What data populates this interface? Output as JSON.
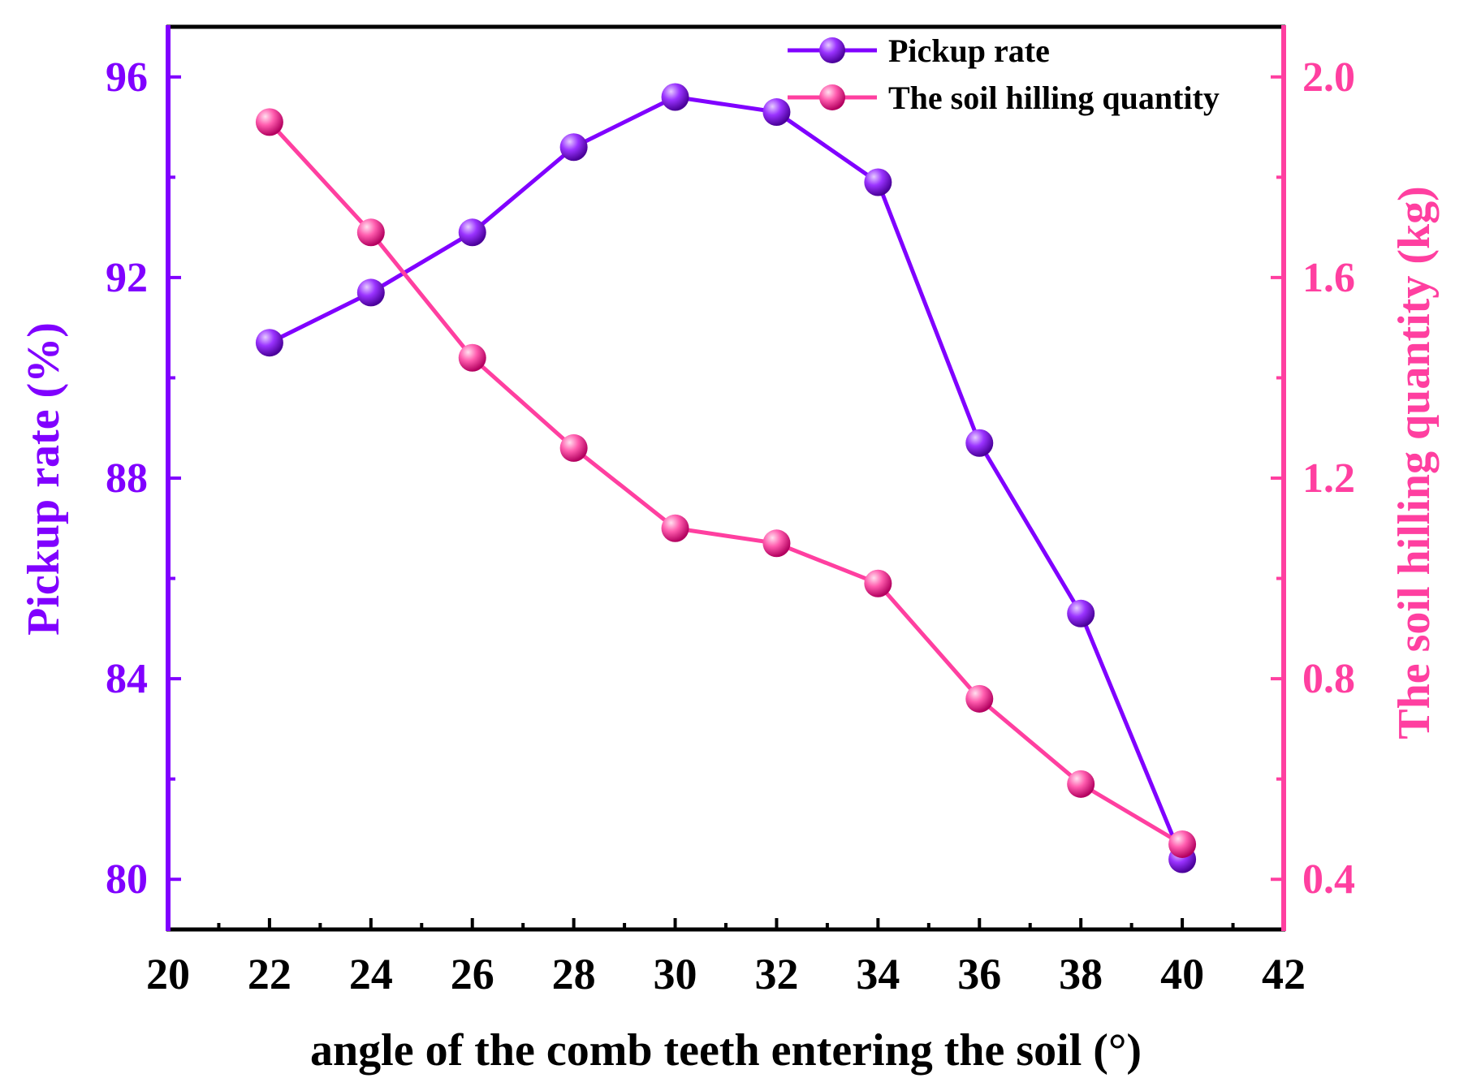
{
  "chart_data": {
    "type": "line",
    "x": [
      22,
      24,
      26,
      28,
      30,
      32,
      34,
      36,
      38,
      40
    ],
    "xlabel": "angle of the comb teeth entering the soil (°)",
    "xlim": [
      20,
      42
    ],
    "xticks": [
      "20",
      "22",
      "24",
      "26",
      "28",
      "30",
      "32",
      "34",
      "36",
      "38",
      "40",
      "42"
    ],
    "ylabel": "Pickup rate (%)",
    "ylim": [
      79,
      97
    ],
    "yticks": [
      "80",
      "84",
      "88",
      "92",
      "96"
    ],
    "y2label": "The soil hilling quantity (kg)",
    "y2lim": [
      0.3,
      2.1
    ],
    "y2ticks": [
      "0.4",
      "0.8",
      "1.2",
      "1.6",
      "2.0"
    ],
    "legend_position": "top-right",
    "series": [
      {
        "name": "Pickup rate",
        "axis": "left",
        "color": "#8000ff",
        "values": [
          90.7,
          91.7,
          92.9,
          94.6,
          95.6,
          95.3,
          93.9,
          88.7,
          85.3,
          80.4
        ]
      },
      {
        "name": "The soil hilling quantity",
        "axis": "right",
        "color": "#ff3fa0",
        "values": [
          1.91,
          1.69,
          1.44,
          1.26,
          1.1,
          1.07,
          0.99,
          0.76,
          0.59,
          0.47
        ]
      }
    ]
  }
}
